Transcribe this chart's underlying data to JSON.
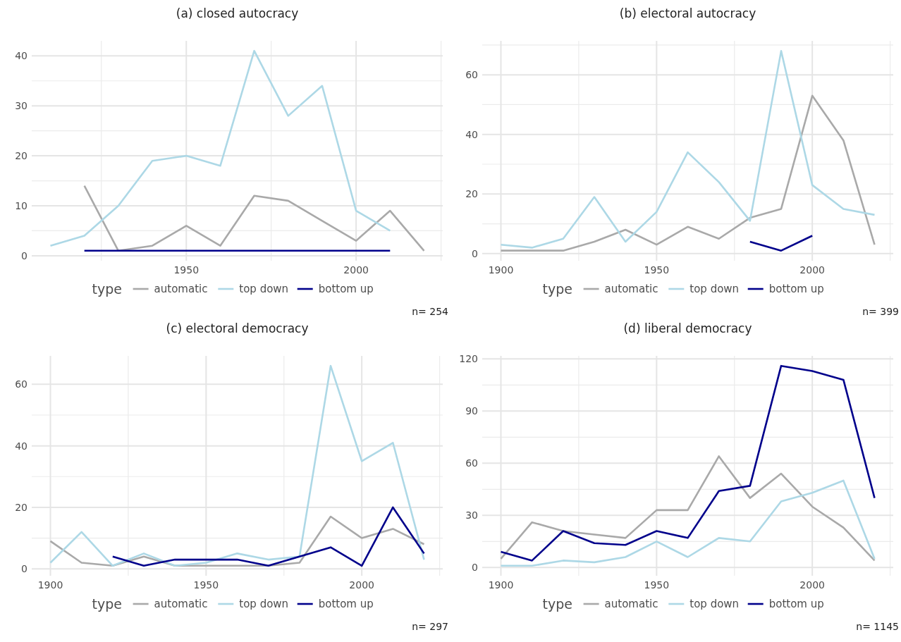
{
  "chart_data": [
    {
      "type": "line",
      "title": "(a) closed autocracy",
      "legend_title": "type",
      "legend": "bottom",
      "grid": true,
      "annotations": [
        "n= 254"
      ],
      "xlim": [
        1904.5,
        2025.5
      ],
      "xticks": [
        1950,
        2000
      ],
      "ylim": [
        -1,
        43
      ],
      "yticks": [
        0,
        10,
        20,
        30,
        40
      ],
      "x": [
        1910,
        1920,
        1930,
        1940,
        1950,
        1960,
        1970,
        1980,
        1990,
        2000,
        2010,
        2020
      ],
      "series": [
        {
          "name": "automatic",
          "color": "#a9a9a9",
          "values": [
            null,
            14,
            1,
            2,
            6,
            2,
            12,
            11,
            7,
            3,
            9,
            1
          ]
        },
        {
          "name": "top down",
          "color": "#add8e6",
          "values": [
            2,
            4,
            10,
            19,
            20,
            18,
            41,
            28,
            34,
            9,
            5,
            null
          ]
        },
        {
          "name": "bottom up",
          "color": "#00008b",
          "values": [
            null,
            1,
            1,
            1,
            1,
            1,
            1,
            1,
            1,
            1,
            1,
            null
          ]
        }
      ]
    },
    {
      "type": "line",
      "title": "(b) electoral autocracy",
      "legend_title": "type",
      "legend": "bottom",
      "grid": true,
      "annotations": [
        "n= 399"
      ],
      "xlim": [
        1894,
        2026
      ],
      "xticks": [
        1900,
        1950,
        2000
      ],
      "ylim": [
        -2.4,
        71.4
      ],
      "yticks": [
        0,
        20,
        40,
        60
      ],
      "x": [
        1900,
        1910,
        1920,
        1930,
        1940,
        1950,
        1960,
        1970,
        1980,
        1990,
        2000,
        2010,
        2020
      ],
      "series": [
        {
          "name": "automatic",
          "color": "#a9a9a9",
          "values": [
            1,
            1,
            1,
            4,
            8,
            3,
            9,
            5,
            12,
            15,
            53,
            38,
            3
          ]
        },
        {
          "name": "top down",
          "color": "#add8e6",
          "values": [
            3,
            2,
            5,
            19,
            4,
            14,
            34,
            24,
            11,
            68,
            23,
            15,
            13
          ]
        },
        {
          "name": "bottom up",
          "color": "#00008b",
          "values": [
            null,
            null,
            null,
            null,
            null,
            null,
            null,
            null,
            4,
            1,
            6,
            null,
            null
          ]
        }
      ]
    },
    {
      "type": "line",
      "title": "(c) electoral democracy",
      "legend_title": "type",
      "legend": "bottom",
      "grid": true,
      "annotations": [
        "n= 297"
      ],
      "xlim": [
        1894,
        2026
      ],
      "xticks": [
        1900,
        1950,
        2000
      ],
      "ylim": [
        -2.25,
        69.25
      ],
      "yticks": [
        0,
        20,
        40,
        60
      ],
      "x": [
        1900,
        1910,
        1920,
        1930,
        1940,
        1950,
        1960,
        1970,
        1980,
        1990,
        2000,
        2010,
        2020
      ],
      "series": [
        {
          "name": "automatic",
          "color": "#a9a9a9",
          "values": [
            9,
            2,
            1,
            4,
            1,
            1,
            1,
            1,
            2,
            17,
            10,
            13,
            8
          ]
        },
        {
          "name": "top down",
          "color": "#add8e6",
          "values": [
            2,
            12,
            1,
            5,
            1,
            2,
            5,
            3,
            4,
            66,
            35,
            41,
            3
          ]
        },
        {
          "name": "bottom up",
          "color": "#00008b",
          "values": [
            null,
            null,
            4,
            1,
            3,
            3,
            3,
            1,
            4,
            7,
            1,
            20,
            5
          ]
        }
      ]
    },
    {
      "type": "line",
      "title": "(d) liberal democracy",
      "legend_title": "type",
      "legend": "bottom",
      "grid": true,
      "annotations": [
        "n= 1145"
      ],
      "xlim": [
        1894,
        2026
      ],
      "xticks": [
        1900,
        1950,
        2000
      ],
      "ylim": [
        -4.75,
        121.75
      ],
      "yticks": [
        0,
        30,
        60,
        90,
        120
      ],
      "x": [
        1900,
        1910,
        1920,
        1930,
        1940,
        1950,
        1960,
        1970,
        1980,
        1990,
        2000,
        2010,
        2020
      ],
      "series": [
        {
          "name": "automatic",
          "color": "#a9a9a9",
          "values": [
            5,
            26,
            21,
            19,
            17,
            33,
            33,
            64,
            40,
            54,
            35,
            23,
            4
          ]
        },
        {
          "name": "top down",
          "color": "#add8e6",
          "values": [
            1,
            1,
            4,
            3,
            6,
            15,
            6,
            17,
            15,
            38,
            43,
            50,
            5
          ]
        },
        {
          "name": "bottom up",
          "color": "#00008b",
          "values": [
            9,
            4,
            21,
            14,
            13,
            21,
            17,
            44,
            47,
            116,
            113,
            108,
            40
          ]
        }
      ]
    }
  ]
}
